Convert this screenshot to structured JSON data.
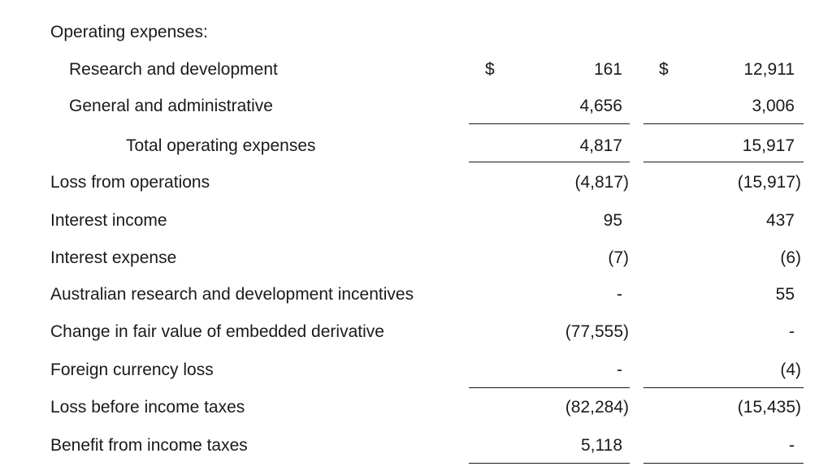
{
  "section_heading": "Operating expenses:",
  "rows": [
    {
      "label": "Research and development",
      "currency1": "$",
      "col1": "161",
      "currency2": "$",
      "col2": "12,911"
    },
    {
      "label": "General and administrative",
      "col1": "4,656",
      "col2": "3,006"
    },
    {
      "label": "Total operating expenses",
      "col1": "4,817",
      "col2": "15,917"
    },
    {
      "label": "Loss from operations",
      "col1": "(4,817)",
      "col2": "(15,917)"
    },
    {
      "label": "Interest income",
      "col1": "95",
      "col2": "437"
    },
    {
      "label": "Interest expense",
      "col1": "(7)",
      "col2": "(6)"
    },
    {
      "label": "Australian research and development incentives",
      "col1": "-",
      "col2": "55"
    },
    {
      "label": "Change in fair value of embedded derivative",
      "col1": "(77,555)",
      "col2": "-"
    },
    {
      "label": "Foreign currency loss",
      "col1": "-",
      "col2": "(4)"
    },
    {
      "label": "Loss before income taxes",
      "col1": "(82,284)",
      "col2": "(15,435)"
    },
    {
      "label": "Benefit from income taxes",
      "col1": "5,118",
      "col2": "-"
    }
  ]
}
